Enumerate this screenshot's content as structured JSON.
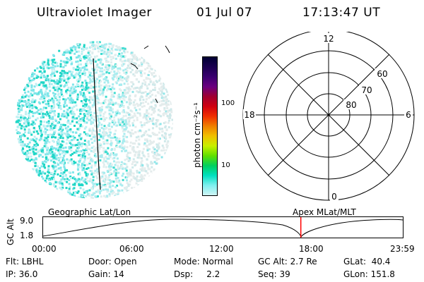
{
  "header": {
    "instrument": "Ultraviolet Imager",
    "date": "01 Jul 07",
    "time": "17:13:47 UT"
  },
  "colorbar": {
    "label": "photon cm⁻²s⁻¹",
    "ticks": [
      "100",
      "10"
    ],
    "colors": [
      "#000033",
      "#1a0050",
      "#3a0070",
      "#6a0080",
      "#a00030",
      "#d00010",
      "#f03000",
      "#f08000",
      "#f0c000",
      "#c8f000",
      "#60e000",
      "#00d060",
      "#00e0c0",
      "#80f0f0",
      "#d0f4f4"
    ]
  },
  "polar_plot": {
    "mlt_labels": {
      "top": "12",
      "left": "18",
      "right": "6",
      "bottom": "0"
    },
    "lat_labels": [
      "60",
      "70",
      "80"
    ]
  },
  "timeline": {
    "left_label": "Geographic Lat/Lon",
    "right_label": "Apex MLat/MLT",
    "axis_title": "GC Alt",
    "y_ticks": [
      "9.0",
      "1.8"
    ],
    "x_ticks": [
      "00:00",
      "06:00",
      "12:00",
      "18:00",
      "23:59"
    ],
    "marker_fraction": 0.7165,
    "marker_color": "#ff0000"
  },
  "status": {
    "filter": "Flt: LBHL",
    "ip": "IP: 36.0",
    "door": "Door: Open",
    "gain": "Gain: 14",
    "mode": "Mode: Normal",
    "dsp": "Dsp:     2.2",
    "gc_alt": "GC Alt: 2.7 Re",
    "seq": "Seq: 39",
    "glat": "GLat:  40.4",
    "glon": "GLon: 151.8"
  }
}
